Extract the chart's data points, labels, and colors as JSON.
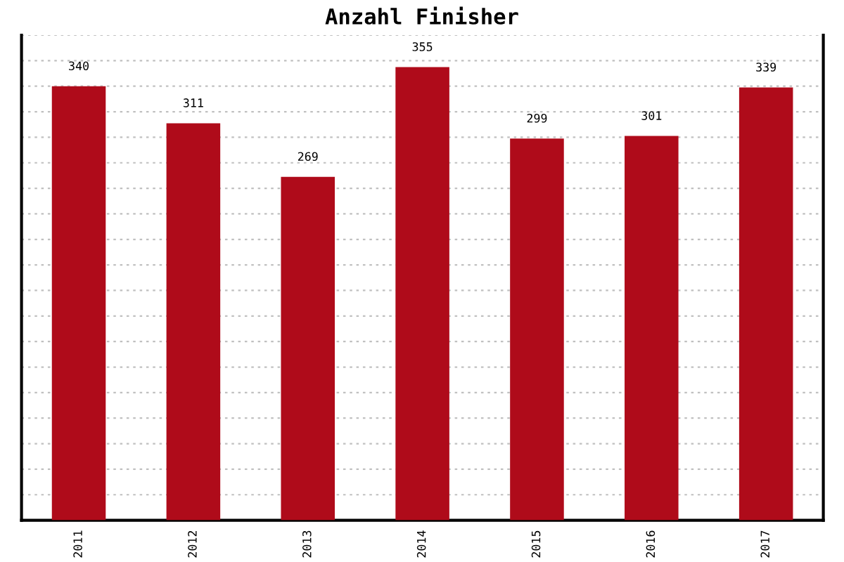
{
  "chart_data": {
    "type": "bar",
    "title": "Anzahl Finisher",
    "categories": [
      "2011",
      "2012",
      "2013",
      "2014",
      "2015",
      "2016",
      "2017"
    ],
    "values": [
      340,
      311,
      269,
      355,
      299,
      301,
      339
    ],
    "color": "#af0b1a",
    "ylim": [
      0,
      380
    ],
    "yticks": [
      {
        "value": 0,
        "label": null
      },
      {
        "value": 20,
        "label": null
      },
      {
        "value": 40,
        "label": null
      },
      {
        "value": 60,
        "label": null
      },
      {
        "value": 80,
        "label": null
      },
      {
        "value": 100,
        "label": null
      },
      {
        "value": 120,
        "label": null
      },
      {
        "value": 140,
        "label": null
      },
      {
        "value": 160,
        "label": null
      },
      {
        "value": 180,
        "label": null
      },
      {
        "value": 200,
        "label": null
      },
      {
        "value": 220,
        "label": null
      },
      {
        "value": 240,
        "label": null
      },
      {
        "value": 260,
        "label": null
      },
      {
        "value": 280,
        "label": null
      },
      {
        "value": 300,
        "label": null
      },
      {
        "value": 320,
        "label": null
      },
      {
        "value": 340,
        "label": null
      },
      {
        "value": 360,
        "label": null
      },
      {
        "value": 380,
        "label": null
      }
    ],
    "grid": "y",
    "data_labels": true,
    "tick_labels": "x"
  }
}
